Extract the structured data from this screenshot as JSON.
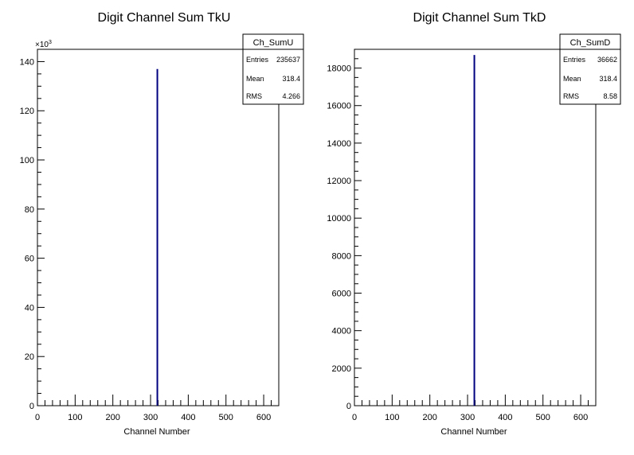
{
  "chart_data": [
    {
      "type": "bar",
      "title": "Digit Channel Sum TkU",
      "xlabel": "Channel Number",
      "ylabel": "",
      "xlim": [
        0,
        640
      ],
      "ylim": [
        0,
        145000
      ],
      "x_ticks": [
        "0",
        "100",
        "200",
        "300",
        "400",
        "500",
        "600"
      ],
      "y_ticks": [
        "0",
        "20",
        "40",
        "60",
        "80",
        "100",
        "120",
        "140"
      ],
      "y_exponent": "×10",
      "y_exponent_power": "3",
      "series": [
        {
          "x": [
            318
          ],
          "values": [
            137000
          ]
        }
      ],
      "color": "#000080",
      "stats": {
        "name": "Ch_SumU",
        "rows": [
          {
            "label": "Entries",
            "value": "235637"
          },
          {
            "label": "Mean",
            "value": "318.4"
          },
          {
            "label": "RMS",
            "value": "4.266"
          }
        ]
      }
    },
    {
      "type": "bar",
      "title": "Digit Channel Sum TkD",
      "xlabel": "Channel Number",
      "ylabel": "",
      "xlim": [
        0,
        640
      ],
      "ylim": [
        0,
        19000
      ],
      "x_ticks": [
        "0",
        "100",
        "200",
        "300",
        "400",
        "500",
        "600"
      ],
      "y_ticks": [
        "0",
        "2000",
        "4000",
        "6000",
        "8000",
        "10000",
        "12000",
        "14000",
        "16000",
        "18000"
      ],
      "series": [
        {
          "x": [
            318
          ],
          "values": [
            18700
          ]
        }
      ],
      "color": "#000080",
      "stats": {
        "name": "Ch_SumD",
        "rows": [
          {
            "label": "Entries",
            "value": "36662"
          },
          {
            "label": "Mean",
            "value": "318.4"
          },
          {
            "label": "RMS",
            "value": "8.58"
          }
        ]
      }
    }
  ]
}
